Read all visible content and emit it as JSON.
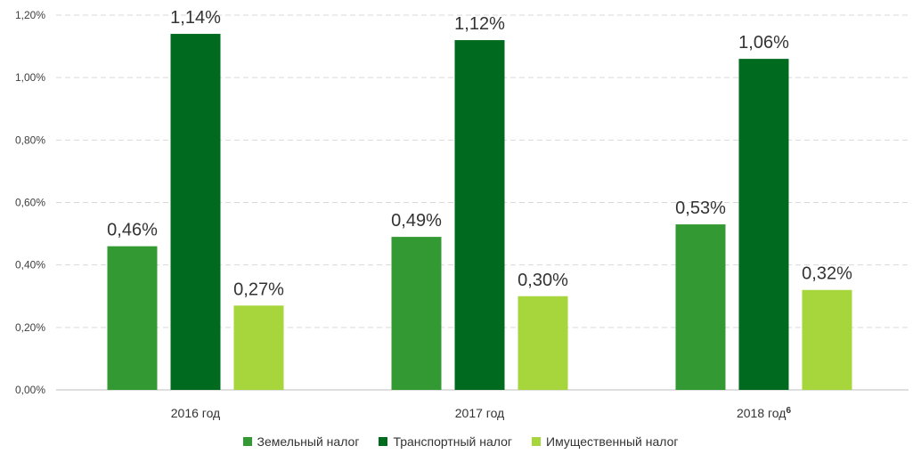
{
  "chart_data": {
    "type": "bar",
    "categories": [
      "2016 год",
      "2017 год",
      "2018 год"
    ],
    "category_footnotes": [
      "",
      "",
      "6"
    ],
    "series": [
      {
        "name": "Земельный налог",
        "values": [
          0.46,
          0.49,
          0.53
        ],
        "labels": [
          "0,46%",
          "0,49%",
          "0,53%"
        ],
        "color": "#339933"
      },
      {
        "name": "Транспортный налог",
        "values": [
          1.14,
          1.12,
          1.06
        ],
        "labels": [
          "1,14%",
          "1,12%",
          "1,06%"
        ],
        "color": "#006b1e"
      },
      {
        "name": "Имущественный налог",
        "values": [
          0.27,
          0.3,
          0.32
        ],
        "labels": [
          "0,27%",
          "0,30%",
          "0,32%"
        ],
        "color": "#a6d63c"
      }
    ],
    "ylim": [
      0,
      1.2
    ],
    "yticks": [
      0,
      0.2,
      0.4,
      0.6,
      0.8,
      1.0,
      1.2
    ],
    "ytick_labels": [
      "0,00%",
      "0,20%",
      "0,40%",
      "0,60%",
      "0,80%",
      "1,00%",
      "1,20%"
    ],
    "grid": true,
    "legend_position": "bottom"
  }
}
